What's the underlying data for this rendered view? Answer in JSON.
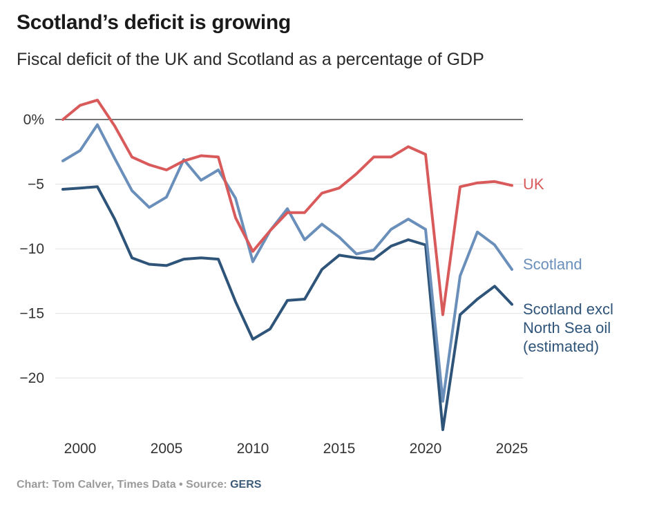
{
  "header": {
    "title": "Scotland’s deficit is growing",
    "subtitle": "Fiscal deficit of the UK and Scotland as a percentage of GDP"
  },
  "footer": {
    "credit": "Chart: Tom Calver, Times Data",
    "separator": " • ",
    "source_prefix": "Source: ",
    "source_name": "GERS"
  },
  "chart_data": {
    "type": "line",
    "title": "Scotland’s deficit is growing",
    "subtitle": "Fiscal deficit of the UK and Scotland as a percentage of GDP",
    "xlabel": "",
    "ylabel": "",
    "xlim": [
      1999,
      2025
    ],
    "ylim": [
      -24,
      0
    ],
    "x_ticks": [
      2000,
      2005,
      2010,
      2015,
      2020,
      2025
    ],
    "y_ticks": [
      0,
      -5,
      -10,
      -15,
      -20
    ],
    "y_tick_labels": [
      "0%",
      "−5",
      "−10",
      "−15",
      "−20"
    ],
    "grid": "horizontal",
    "zero_line": true,
    "legend": "direct labels at line ends (right)",
    "x": [
      1999,
      2000,
      2001,
      2002,
      2003,
      2004,
      2005,
      2006,
      2007,
      2008,
      2009,
      2010,
      2011,
      2012,
      2013,
      2014,
      2015,
      2016,
      2017,
      2018,
      2019,
      2020,
      2021,
      2022,
      2023,
      2024,
      2025
    ],
    "series": [
      {
        "name": "UK",
        "color": "#d95a5a",
        "values": [
          0.0,
          1.1,
          1.5,
          -0.5,
          -2.9,
          -3.5,
          -3.9,
          -3.2,
          -2.8,
          -2.9,
          -7.6,
          -10.2,
          -8.6,
          -7.2,
          -7.2,
          -5.7,
          -5.3,
          -4.2,
          -2.9,
          -2.9,
          -2.1,
          -2.7,
          -15.1,
          -5.2,
          -4.9,
          -4.8,
          -5.1
        ]
      },
      {
        "name": "Scotland",
        "color": "#6a8fba",
        "values": [
          -3.2,
          -2.4,
          -0.4,
          -3.0,
          -5.5,
          -6.8,
          -6.0,
          -3.1,
          -4.7,
          -3.9,
          -6.1,
          -11.0,
          -8.6,
          -6.9,
          -9.3,
          -8.1,
          -9.1,
          -10.4,
          -10.1,
          -8.5,
          -7.7,
          -8.5,
          -21.8,
          -12.1,
          -8.7,
          -9.7,
          -11.6
        ]
      },
      {
        "name": "Scotland excl North Sea oil (estimated)",
        "label_lines": [
          "Scotland excl",
          "North Sea oil",
          "(estimated)"
        ],
        "color": "#2f5479",
        "values": [
          -5.4,
          -5.3,
          -5.2,
          -7.7,
          -10.7,
          -11.2,
          -11.3,
          -10.8,
          -10.7,
          -10.8,
          -14.1,
          -17.0,
          -16.2,
          -14.0,
          -13.9,
          -11.6,
          -10.5,
          -10.7,
          -10.8,
          -9.8,
          -9.3,
          -9.7,
          -24.0,
          -15.1,
          -13.9,
          -12.9,
          -14.3
        ]
      }
    ]
  }
}
